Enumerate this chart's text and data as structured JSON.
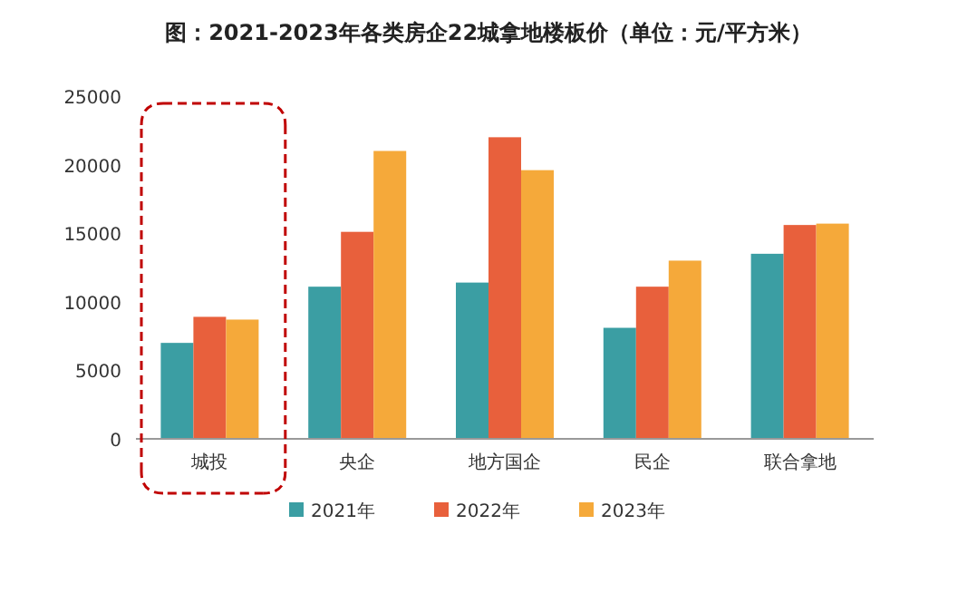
{
  "chart_data": {
    "type": "bar",
    "title": "图：2021-2023年各类房企22城拿地楼板价（单位：元/平方米）",
    "categories": [
      "城投",
      "央企",
      "地方国企",
      "民企",
      "联合拿地"
    ],
    "series": [
      {
        "name": "2021年",
        "color": "#3b9ea3",
        "values": [
          7000,
          11100,
          11400,
          8100,
          13500
        ]
      },
      {
        "name": "2022年",
        "color": "#e8603c",
        "values": [
          8900,
          15100,
          22000,
          11100,
          15600
        ]
      },
      {
        "name": "2023年",
        "color": "#f5a93a",
        "values": [
          8700,
          21000,
          19600,
          13000,
          15700
        ]
      }
    ],
    "ylim": [
      0,
      25000
    ],
    "yticks": [
      0,
      5000,
      10000,
      15000,
      20000,
      25000
    ],
    "legend": "bottom"
  }
}
